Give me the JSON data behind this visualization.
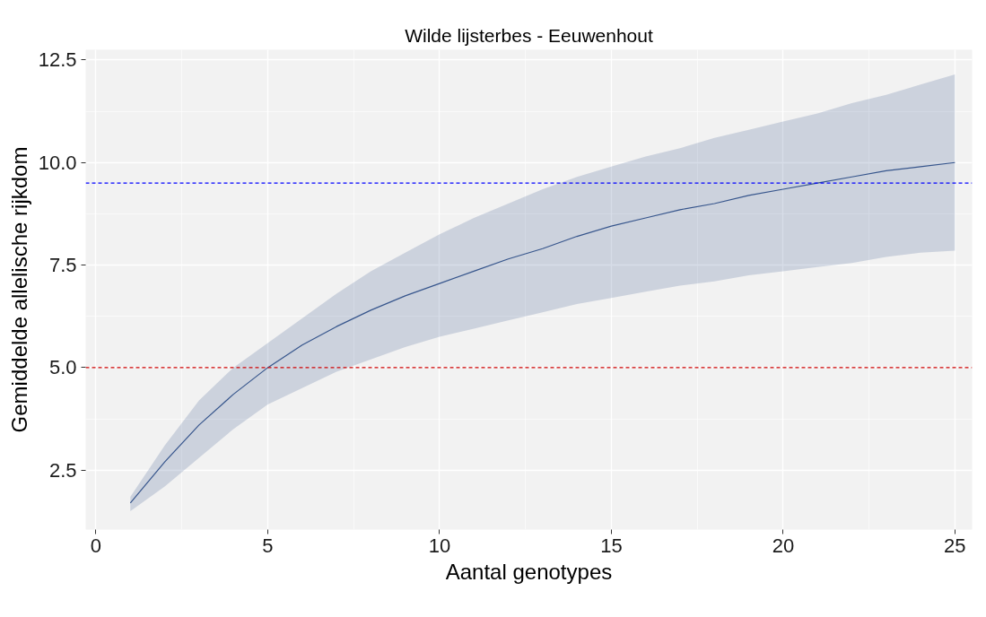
{
  "chart_data": {
    "type": "line",
    "title": "Wilde lijsterbes - Eeuwenhout",
    "xlabel": "Aantal genotypes",
    "ylabel": "Gemiddelde allelische rijkdom",
    "x": [
      1,
      2,
      3,
      4,
      5,
      6,
      7,
      8,
      9,
      10,
      11,
      12,
      13,
      14,
      15,
      16,
      17,
      18,
      19,
      20,
      21,
      22,
      23,
      24,
      25
    ],
    "series": [
      {
        "color": "#36558c",
        "values": [
          1.7,
          2.7,
          3.6,
          4.35,
          5.0,
          5.55,
          6.0,
          6.4,
          6.75,
          7.05,
          7.35,
          7.65,
          7.9,
          8.2,
          8.45,
          8.65,
          8.85,
          9.0,
          9.2,
          9.35,
          9.5,
          9.65,
          9.8,
          9.9,
          10.0
        ],
        "lower": [
          1.5,
          2.1,
          2.8,
          3.5,
          4.1,
          4.5,
          4.9,
          5.2,
          5.5,
          5.75,
          5.95,
          6.15,
          6.35,
          6.55,
          6.7,
          6.85,
          7.0,
          7.1,
          7.25,
          7.35,
          7.45,
          7.55,
          7.7,
          7.8,
          7.85
        ],
        "upper": [
          1.85,
          3.1,
          4.2,
          5.0,
          5.6,
          6.2,
          6.8,
          7.35,
          7.8,
          8.25,
          8.65,
          9.0,
          9.35,
          9.65,
          9.9,
          10.15,
          10.35,
          10.6,
          10.8,
          11.0,
          11.2,
          11.45,
          11.65,
          11.9,
          12.15
        ]
      }
    ],
    "ref_lines": [
      {
        "axis": "y",
        "value": 9.5,
        "color": "#0000ff",
        "line_style": "dashed"
      },
      {
        "axis": "y",
        "value": 5.0,
        "color": "#cc0000",
        "line_style": "dashed"
      }
    ],
    "xlim": [
      -0.3,
      25.5
    ],
    "ylim": [
      1.05,
      12.75
    ],
    "xticks": [
      0,
      5,
      10,
      15,
      20,
      25
    ],
    "yticks": [
      {
        "value": 2.5,
        "label": "2.5"
      },
      {
        "value": 5,
        "label": "5.0"
      },
      {
        "value": 7.5,
        "label": "7.5"
      },
      {
        "value": 10,
        "label": "10.0"
      },
      {
        "value": 12.5,
        "label": "12.5"
      }
    ],
    "grid": true,
    "marker": "none",
    "line_style": "solid"
  }
}
